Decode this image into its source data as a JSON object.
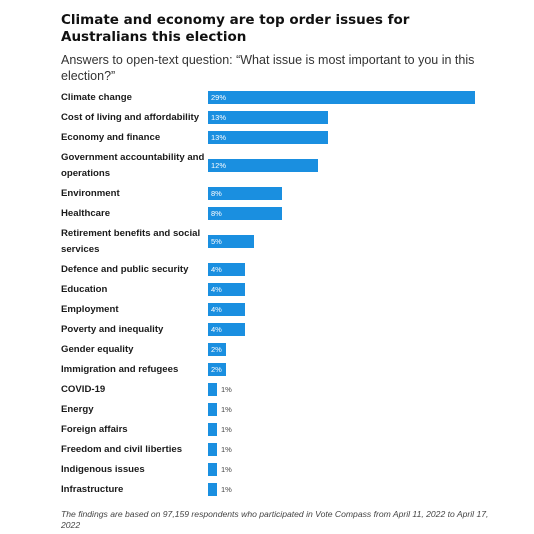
{
  "title": "Climate and economy are top order issues for Australians this election",
  "subtitle": "Answers to open-text question: “What issue is most important to you in this election?”",
  "footer": "The findings are based on 97,159 respondents who participated in Vote Compass from April 11, 2022 to April 17, 2022",
  "colors": {
    "bar": "#1a8fe0"
  },
  "chart_data": {
    "type": "bar",
    "orientation": "horizontal",
    "categories": [
      "Climate change",
      "Cost of living and affordability",
      "Economy and finance",
      "Government accountability and operations",
      "Environment",
      "Healthcare",
      "Retirement benefits and social services",
      "Defence and public security",
      "Education",
      "Employment",
      "Poverty and inequality",
      "Gender equality",
      "Immigration and refugees",
      "COVID-19",
      "Energy",
      "Foreign affairs",
      "Freedom and civil liberties",
      "Indigenous issues",
      "Infrastructure"
    ],
    "values": [
      29,
      13,
      13,
      12,
      8,
      8,
      5,
      4,
      4,
      4,
      4,
      2,
      2,
      1,
      1,
      1,
      1,
      1,
      1
    ],
    "value_labels": [
      "29%",
      "13%",
      "13%",
      "12%",
      "8%",
      "8%",
      "5%",
      "4%",
      "4%",
      "4%",
      "4%",
      "2%",
      "2%",
      "1%",
      "1%",
      "1%",
      "1%",
      "1%",
      "1%"
    ],
    "xlim": [
      0,
      29
    ]
  }
}
